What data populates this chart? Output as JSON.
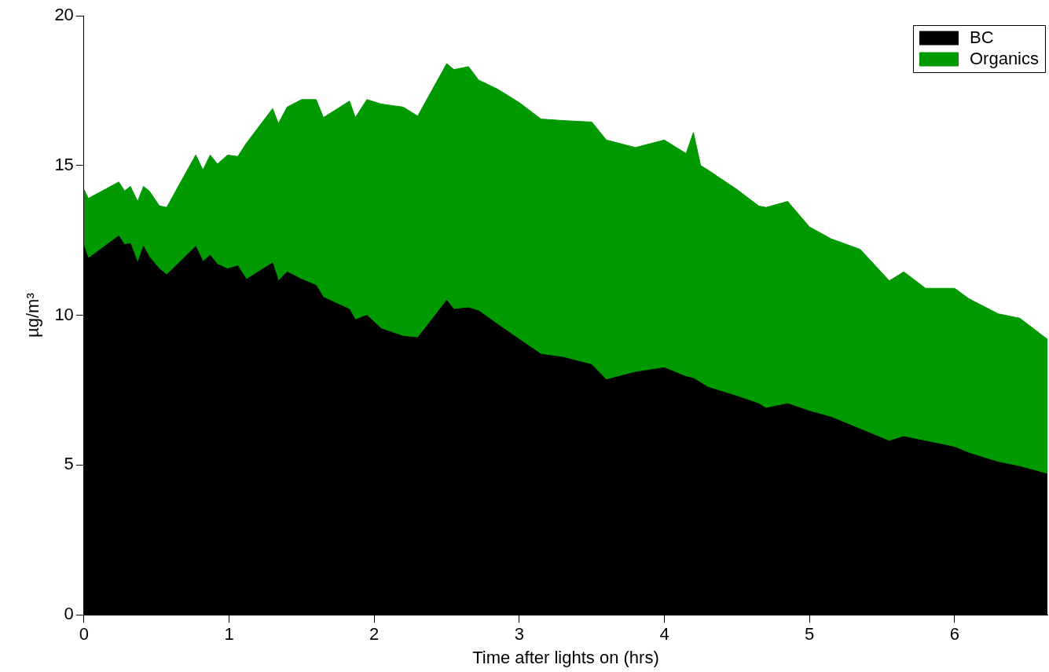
{
  "chart_data": {
    "type": "area",
    "stacked": true,
    "xlabel": "Time after lights on (hrs)",
    "ylabel": "µg/m³",
    "x": [
      0,
      0.03,
      0.24,
      0.28,
      0.32,
      0.37,
      0.41,
      0.45,
      0.52,
      0.57,
      0.77,
      0.82,
      0.87,
      0.92,
      0.99,
      1.06,
      1.12,
      1.3,
      1.34,
      1.4,
      1.5,
      1.6,
      1.65,
      1.83,
      1.87,
      1.95,
      2.05,
      2.2,
      2.3,
      2.5,
      2.55,
      2.65,
      2.72,
      2.85,
      3.0,
      3.15,
      3.3,
      3.5,
      3.6,
      3.8,
      4.0,
      4.15,
      4.2,
      4.25,
      4.3,
      4.5,
      4.65,
      4.7,
      4.85,
      5.0,
      5.15,
      5.35,
      5.55,
      5.65,
      5.8,
      6.0,
      6.1,
      6.3,
      6.45,
      6.64
    ],
    "series": [
      {
        "name": "BC",
        "color": "#000000",
        "values": [
          12.3,
          11.9,
          12.65,
          12.35,
          12.4,
          11.75,
          12.3,
          11.95,
          11.55,
          11.35,
          12.3,
          11.8,
          12.0,
          11.7,
          11.55,
          11.65,
          11.2,
          11.75,
          11.15,
          11.45,
          11.2,
          11.0,
          10.6,
          10.2,
          9.85,
          10.0,
          9.55,
          9.3,
          9.25,
          10.5,
          10.2,
          10.25,
          10.15,
          9.7,
          9.2,
          8.7,
          8.6,
          8.35,
          7.85,
          8.1,
          8.25,
          7.95,
          7.9,
          7.75,
          7.6,
          7.3,
          7.05,
          6.9,
          7.05,
          6.8,
          6.6,
          6.2,
          5.8,
          5.95,
          5.8,
          5.6,
          5.4,
          5.1,
          4.95,
          4.7
        ]
      },
      {
        "name": "Organics",
        "color": "#009900",
        "values": [
          1.9,
          2.0,
          1.8,
          1.8,
          1.9,
          2.05,
          2.0,
          2.2,
          2.1,
          2.25,
          3.05,
          3.05,
          3.35,
          3.35,
          3.8,
          3.65,
          4.55,
          5.15,
          5.25,
          5.5,
          6.0,
          6.2,
          6.0,
          6.95,
          6.75,
          7.2,
          7.5,
          7.65,
          7.4,
          7.9,
          8.0,
          8.05,
          7.7,
          7.85,
          7.9,
          7.85,
          7.9,
          8.1,
          8.0,
          7.5,
          7.6,
          7.45,
          8.2,
          7.25,
          7.25,
          6.9,
          6.6,
          6.7,
          6.75,
          6.15,
          5.95,
          6.0,
          5.35,
          5.5,
          5.1,
          5.3,
          5.15,
          4.95,
          4.95,
          4.5
        ]
      }
    ],
    "xlim": [
      0,
      6.64
    ],
    "xticks": [
      0,
      1,
      2,
      3,
      4,
      5,
      6
    ],
    "ylim": [
      0,
      20
    ],
    "yticks": [
      0,
      5,
      10,
      15,
      20
    ],
    "grid": false,
    "legend": "top right",
    "marker": "none"
  }
}
